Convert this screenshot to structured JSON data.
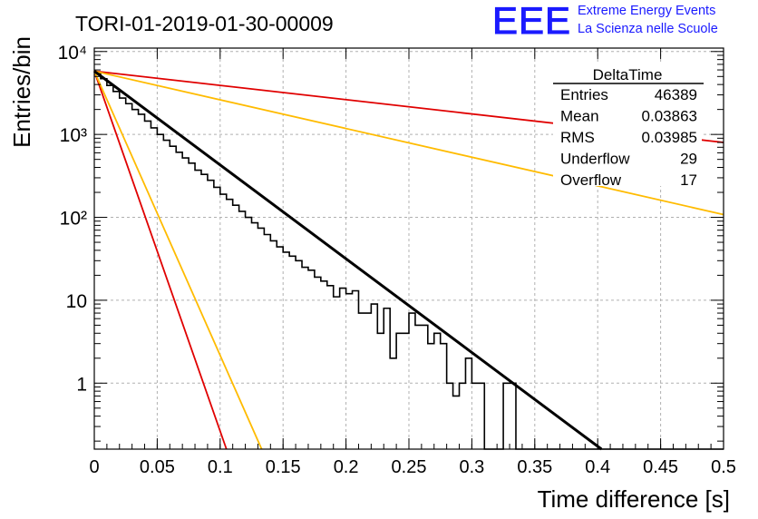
{
  "header": {
    "title": "TORI-01-2019-01-30-00009",
    "logo_mark": "EEE",
    "logo_line1": "Extreme Energy Events",
    "logo_line2": "La Scienza nelle Scuole"
  },
  "stats": {
    "name": "DeltaTime",
    "rows": [
      {
        "label": "Entries",
        "value": "46389"
      },
      {
        "label": "Mean",
        "value": "0.03863"
      },
      {
        "label": "RMS",
        "value": "0.03985"
      },
      {
        "label": "Underflow",
        "value": "29"
      },
      {
        "label": "Overflow",
        "value": "17"
      }
    ]
  },
  "colors": {
    "fit": "#000000",
    "band_outer": "#e00000",
    "band_inner": "#ffbb00",
    "histogram": "#000000",
    "grid": "#b0b0b0"
  },
  "chart_data": {
    "type": "line",
    "xlabel": "Time difference [s]",
    "ylabel": "Entries/bin",
    "xlim": [
      0,
      0.5
    ],
    "ylim": [
      0.16,
      11000
    ],
    "yscale": "log",
    "grid": true,
    "xticks": [
      {
        "v": 0,
        "label": "0"
      },
      {
        "v": 0.05,
        "label": "0.05"
      },
      {
        "v": 0.1,
        "label": "0.1"
      },
      {
        "v": 0.15,
        "label": "0.15"
      },
      {
        "v": 0.2,
        "label": "0.2"
      },
      {
        "v": 0.25,
        "label": "0.25"
      },
      {
        "v": 0.3,
        "label": "0.3"
      },
      {
        "v": 0.35,
        "label": "0.35"
      },
      {
        "v": 0.4,
        "label": "0.4"
      },
      {
        "v": 0.45,
        "label": "0.45"
      },
      {
        "v": 0.5,
        "label": "0.5"
      }
    ],
    "yticks": [
      {
        "v": 1,
        "label": "1"
      },
      {
        "v": 10,
        "label": "10"
      },
      {
        "v": 100,
        "label": "10²"
      },
      {
        "v": 1000,
        "label": "10³"
      },
      {
        "v": 10000,
        "label": "10⁴"
      }
    ],
    "histogram": {
      "bin_width": 0.005,
      "x_start": 0,
      "counts": [
        5500,
        4700,
        3900,
        3300,
        2750,
        2350,
        2000,
        1750,
        1450,
        1200,
        1000,
        850,
        720,
        610,
        520,
        450,
        370,
        330,
        280,
        230,
        190,
        165,
        140,
        118,
        100,
        86,
        74,
        62,
        52,
        44,
        38,
        34,
        30,
        25,
        23,
        19,
        17,
        15,
        11,
        14,
        12,
        13,
        7,
        7,
        9,
        4,
        8,
        2,
        4,
        4,
        7,
        5,
        5,
        3,
        4,
        3,
        1,
        0.7,
        1,
        2,
        1,
        1,
        0.1,
        0.1,
        0.1,
        1,
        1,
        0.1,
        0.1,
        0.1,
        0.1,
        0.1,
        0.1,
        0.1,
        0.1,
        0.1,
        0.1,
        0.1,
        0.1,
        0.1,
        0.1,
        0.1,
        0.1,
        0.1,
        0.1,
        0.1,
        0.1,
        0.1,
        0.1,
        0.1,
        0.1,
        0.1,
        0.1,
        0.1,
        0.1,
        0.1,
        0.1,
        0.1,
        0.1,
        0.1
      ]
    },
    "series": [
      {
        "role": "fit",
        "x": [
          0,
          0.403
        ],
        "y": [
          5800,
          0.16
        ]
      },
      {
        "role": "band_outer",
        "x": [
          0,
          0.5
        ],
        "y": [
          5800,
          800
        ]
      },
      {
        "role": "band_outer",
        "x": [
          0,
          0.105
        ],
        "y": [
          5800,
          0.16
        ]
      },
      {
        "role": "band_inner",
        "x": [
          0,
          0.5
        ],
        "y": [
          5800,
          108
        ]
      },
      {
        "role": "band_inner",
        "x": [
          0,
          0.133
        ],
        "y": [
          5800,
          0.16
        ]
      }
    ]
  }
}
